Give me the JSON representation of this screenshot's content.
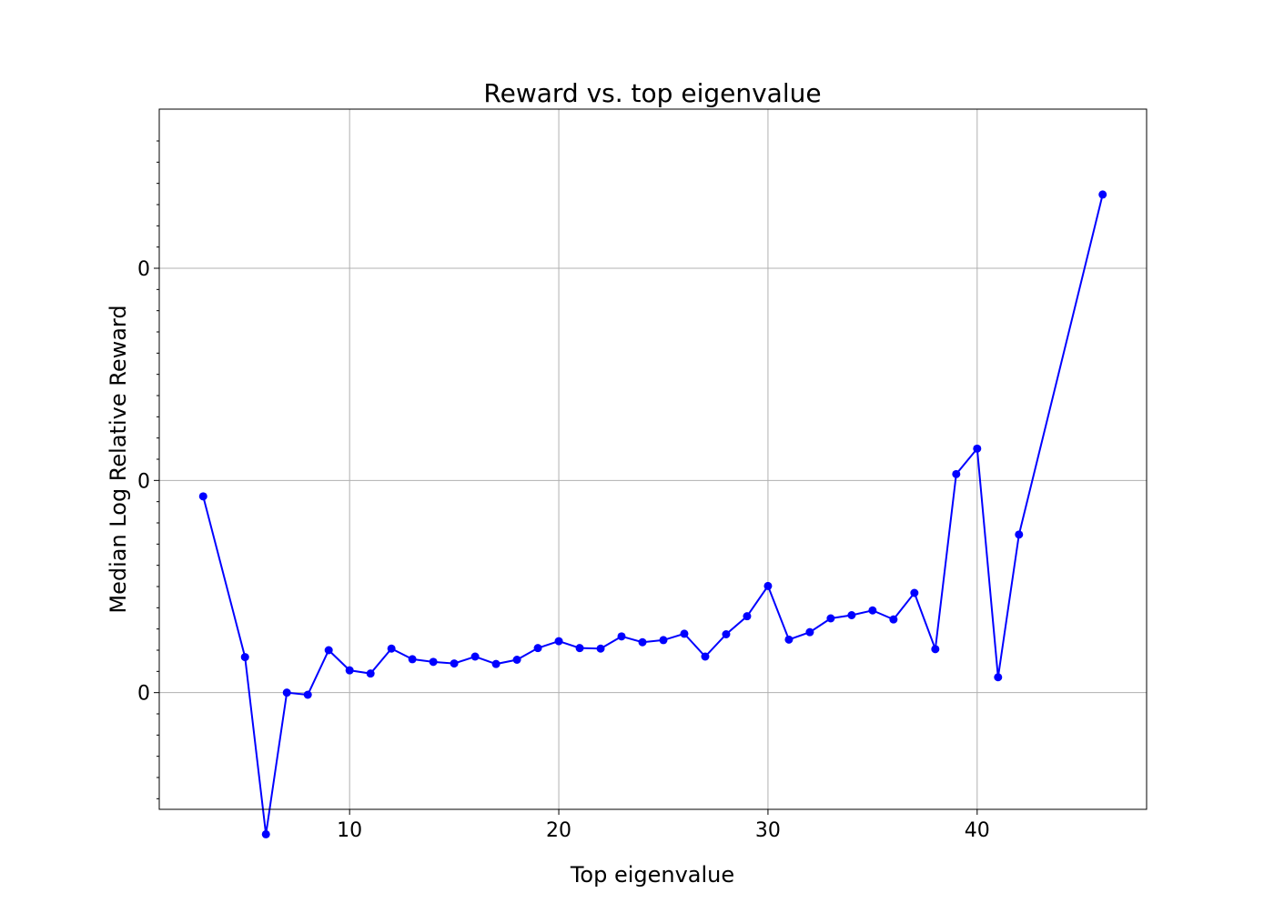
{
  "chart_data": {
    "type": "line",
    "title": "Reward vs. top eigenvalue",
    "xlabel": "Top eigenvalue",
    "ylabel": "Median Log Relative Reward",
    "xlim": [
      0.9,
      48.1
    ],
    "ylim": [
      -0.82,
      0.5
    ],
    "x_ticks": [
      10,
      20,
      30,
      40
    ],
    "y_ticks": [
      {
        "value": 0.2,
        "label": "0"
      },
      {
        "value": -0.2,
        "label": "0"
      },
      {
        "value": -0.6,
        "label": "0"
      }
    ],
    "y_minor_ticks": [
      0.44,
      0.4,
      0.36,
      0.32,
      0.28,
      0.24,
      0.16,
      0.12,
      0.08,
      0.04,
      0.0,
      -0.04,
      -0.08,
      -0.12,
      -0.16,
      -0.24,
      -0.28,
      -0.32,
      -0.36,
      -0.4,
      -0.44,
      -0.48,
      -0.52,
      -0.56,
      -0.64,
      -0.68,
      -0.72,
      -0.76,
      -0.8
    ],
    "grid": true,
    "color": "#0000ff",
    "marker": "circle",
    "series": [
      {
        "x": [
          3,
          5,
          6,
          7,
          8,
          9,
          10,
          11,
          12,
          13,
          14,
          15,
          16,
          17,
          18,
          19,
          20,
          21,
          22,
          23,
          24,
          25,
          26,
          27,
          28,
          29,
          30,
          31,
          32,
          33,
          34,
          35,
          36,
          37,
          38,
          39,
          40,
          41,
          42,
          46
        ],
        "y": [
          -0.23,
          -0.533,
          -0.867,
          -0.6,
          -0.604,
          -0.52,
          -0.558,
          -0.564,
          -0.517,
          -0.537,
          -0.542,
          -0.545,
          -0.532,
          -0.546,
          -0.538,
          -0.516,
          -0.503,
          -0.516,
          -0.517,
          -0.494,
          -0.505,
          -0.501,
          -0.489,
          -0.532,
          -0.49,
          -0.456,
          -0.399,
          -0.5,
          -0.486,
          -0.46,
          -0.454,
          -0.445,
          -0.462,
          -0.412,
          -0.518,
          -0.188,
          -0.14,
          -0.571,
          -0.302,
          0.339
        ]
      }
    ]
  }
}
